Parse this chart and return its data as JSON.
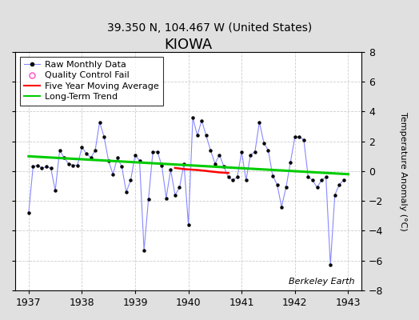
{
  "title": "KIOWA",
  "subtitle": "39.350 N, 104.467 W (United States)",
  "ylabel": "Temperature Anomaly (°C)",
  "watermark": "Berkeley Earth",
  "xlim": [
    1936.75,
    1943.25
  ],
  "ylim": [
    -8,
    8
  ],
  "xticks": [
    1937,
    1938,
    1939,
    1940,
    1941,
    1942,
    1943
  ],
  "yticks": [
    -8,
    -6,
    -4,
    -2,
    0,
    2,
    4,
    6,
    8
  ],
  "background_color": "#e0e0e0",
  "plot_background_color": "#ffffff",
  "grid_color": "#cccccc",
  "raw_line_color": "#8888ff",
  "raw_marker_color": "#000000",
  "ma_color": "#ff0000",
  "trend_color": "#00cc00",
  "raw_monthly_x": [
    1937.0,
    1937.083,
    1937.167,
    1937.25,
    1937.333,
    1937.417,
    1937.5,
    1937.583,
    1937.667,
    1937.75,
    1937.833,
    1937.917,
    1938.0,
    1938.083,
    1938.167,
    1938.25,
    1938.333,
    1938.417,
    1938.5,
    1938.583,
    1938.667,
    1938.75,
    1938.833,
    1938.917,
    1939.0,
    1939.083,
    1939.167,
    1939.25,
    1939.333,
    1939.417,
    1939.5,
    1939.583,
    1939.667,
    1939.75,
    1939.833,
    1939.917,
    1940.0,
    1940.083,
    1940.167,
    1940.25,
    1940.333,
    1940.417,
    1940.5,
    1940.583,
    1940.667,
    1940.75,
    1940.833,
    1940.917,
    1941.0,
    1941.083,
    1941.167,
    1941.25,
    1941.333,
    1941.417,
    1941.5,
    1941.583,
    1941.667,
    1941.75,
    1941.833,
    1941.917,
    1942.0,
    1942.083,
    1942.167,
    1942.25,
    1942.333,
    1942.417,
    1942.5,
    1942.583,
    1942.667,
    1942.75,
    1942.833,
    1942.917
  ],
  "raw_monthly_y": [
    -2.8,
    0.3,
    0.4,
    0.2,
    0.3,
    0.2,
    -1.3,
    1.4,
    0.9,
    0.5,
    0.4,
    0.4,
    1.6,
    1.2,
    0.9,
    1.4,
    3.3,
    2.3,
    0.7,
    -0.2,
    0.9,
    0.3,
    -1.4,
    -0.6,
    1.1,
    0.7,
    -5.3,
    -1.9,
    1.3,
    1.3,
    0.4,
    -1.8,
    0.1,
    -1.6,
    -1.1,
    0.5,
    -3.6,
    3.6,
    2.4,
    3.4,
    2.4,
    1.4,
    0.5,
    1.1,
    0.3,
    -0.4,
    -0.6,
    -0.4,
    1.3,
    -0.6,
    1.1,
    1.3,
    3.3,
    1.9,
    1.4,
    -0.3,
    -0.9,
    -2.4,
    -1.1,
    0.6,
    2.3,
    2.3,
    2.1,
    -0.4,
    -0.6,
    -1.1,
    -0.6,
    -0.4,
    -6.3,
    -1.6,
    -0.9,
    -0.6
  ],
  "moving_average_x": [
    1939.75,
    1939.833,
    1939.917,
    1940.0,
    1940.083,
    1940.167,
    1940.25,
    1940.333,
    1940.417,
    1940.5,
    1940.583,
    1940.667,
    1940.75
  ],
  "moving_average_y": [
    0.22,
    0.18,
    0.14,
    0.12,
    0.1,
    0.08,
    0.05,
    0.02,
    -0.02,
    -0.05,
    -0.08,
    -0.1,
    -0.12
  ],
  "trend_x": [
    1937.0,
    1943.0
  ],
  "trend_y": [
    1.0,
    -0.2
  ],
  "title_fontsize": 13,
  "subtitle_fontsize": 10,
  "axis_label_fontsize": 8,
  "tick_fontsize": 9,
  "watermark_fontsize": 8,
  "legend_fontsize": 8
}
